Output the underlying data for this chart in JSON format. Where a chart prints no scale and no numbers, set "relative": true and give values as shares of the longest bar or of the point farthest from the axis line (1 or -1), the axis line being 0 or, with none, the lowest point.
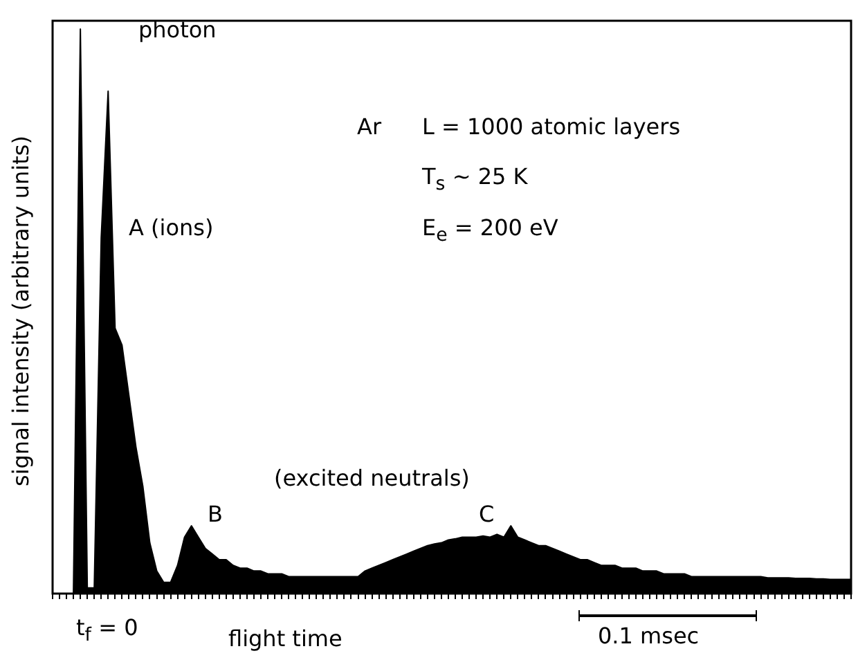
{
  "chart_data": {
    "type": "area",
    "relative": true,
    "xlabel": "flight time",
    "ylabel": "signal intensity (arbitrary units)",
    "color": "#000000",
    "grid": false,
    "legend": false,
    "annotations": [
      "photon",
      "A (ions)",
      "Ar",
      "L = 1000 atomic layers",
      "T$_{s}$ ~ 25 K",
      "E$_{e}$ = 200 eV",
      "(excited neutrals)",
      "B",
      "C",
      "t$_{f}$ = 0",
      "0.1 msec"
    ],
    "categories": [
      null,
      null,
      null,
      null,
      null,
      null,
      null,
      null,
      null,
      null,
      null,
      null,
      null,
      null,
      null,
      null,
      null,
      null,
      null,
      null,
      null,
      null,
      null,
      null,
      null,
      null,
      null,
      null,
      null,
      null,
      null,
      null,
      null,
      null,
      null,
      null,
      null,
      null,
      null,
      null,
      null,
      null,
      null,
      null,
      null,
      null,
      null,
      null,
      null,
      null,
      null,
      null,
      null,
      null,
      null,
      null,
      null,
      null,
      null,
      null,
      null,
      null,
      null,
      null,
      null,
      null,
      null,
      null,
      null,
      null,
      null,
      null,
      null,
      null,
      null,
      null,
      null,
      null,
      null,
      null,
      null,
      null,
      null,
      null,
      null,
      null,
      null,
      null,
      null,
      null,
      null,
      null,
      null,
      null,
      null,
      null,
      null,
      null,
      null,
      null,
      null,
      null,
      null,
      null,
      null,
      null,
      null,
      null,
      null,
      null,
      null,
      null,
      null,
      null,
      null,
      null
    ],
    "values": [
      0,
      0,
      0,
      0,
      1,
      0.01,
      0.01,
      0.63,
      0.89,
      0.47,
      0.44,
      0.35,
      0.26,
      0.19,
      0.09,
      0.04,
      0.02,
      0.02,
      0.05,
      0.1,
      0.12,
      0.1,
      0.08,
      0.07,
      0.06,
      0.06,
      0.05,
      0.045,
      0.045,
      0.04,
      0.04,
      0.035,
      0.035,
      0.035,
      0.03,
      0.03,
      0.03,
      0.03,
      0.03,
      0.03,
      0.03,
      0.03,
      0.03,
      0.03,
      0.03,
      0.04,
      0.045,
      0.05,
      0.055,
      0.06,
      0.065,
      0.07,
      0.075,
      0.08,
      0.085,
      0.088,
      0.09,
      0.095,
      0.097,
      0.1,
      0.1,
      0.1,
      0.102,
      0.1,
      0.105,
      0.1,
      0.12,
      0.1,
      0.095,
      0.09,
      0.085,
      0.085,
      0.08,
      0.075,
      0.07,
      0.065,
      0.06,
      0.06,
      0.055,
      0.05,
      0.05,
      0.05,
      0.045,
      0.045,
      0.045,
      0.04,
      0.04,
      0.04,
      0.035,
      0.035,
      0.035,
      0.035,
      0.03,
      0.03,
      0.03,
      0.03,
      0.03,
      0.03,
      0.03,
      0.03,
      0.03,
      0.03,
      0.03,
      0.028,
      0.028,
      0.028,
      0.028,
      0.027,
      0.027,
      0.027,
      0.026,
      0.026,
      0.025,
      0.025,
      0.025,
      0.025
    ]
  }
}
